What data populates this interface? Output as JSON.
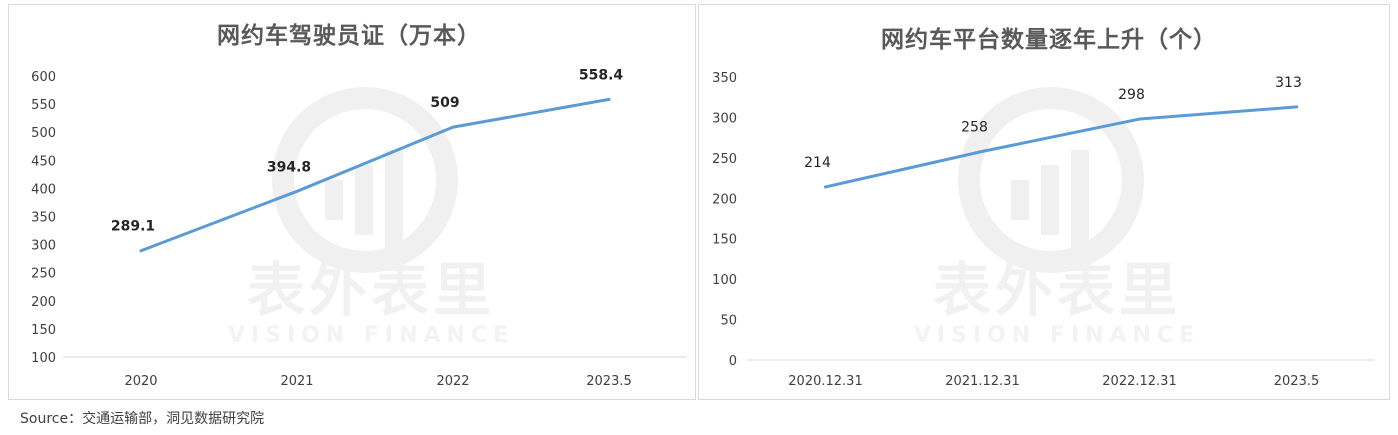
{
  "chart_data": [
    {
      "type": "line",
      "title": "网约车驾驶员证（万本）",
      "categories": [
        "2020",
        "2021",
        "2022",
        "2023.5"
      ],
      "values": [
        289.1,
        394.8,
        509,
        558.4
      ],
      "value_labels": [
        "289.1",
        "394.8",
        "509",
        "558.4"
      ],
      "ylim": [
        100,
        600
      ],
      "yticks": [
        "100",
        "150",
        "200",
        "250",
        "300",
        "350",
        "400",
        "450",
        "500",
        "550",
        "600"
      ],
      "grid": false,
      "color": "#5b9bd5"
    },
    {
      "type": "line",
      "title": "网约车平台数量逐年上升（个）",
      "categories": [
        "2020.12.31",
        "2021.12.31",
        "2022.12.31",
        "2023.5"
      ],
      "values": [
        214,
        258,
        298,
        313
      ],
      "value_labels": [
        "214",
        "258",
        "298",
        "313"
      ],
      "ylim": [
        0,
        350
      ],
      "yticks": [
        "0",
        "50",
        "100",
        "150",
        "200",
        "250",
        "300",
        "350"
      ],
      "grid": false,
      "color": "#5b9bd5"
    }
  ],
  "watermark": {
    "text": "表外表里",
    "subtext": "VISION FINANCE"
  },
  "source": "Source：交通运输部，洞见数据研究院"
}
